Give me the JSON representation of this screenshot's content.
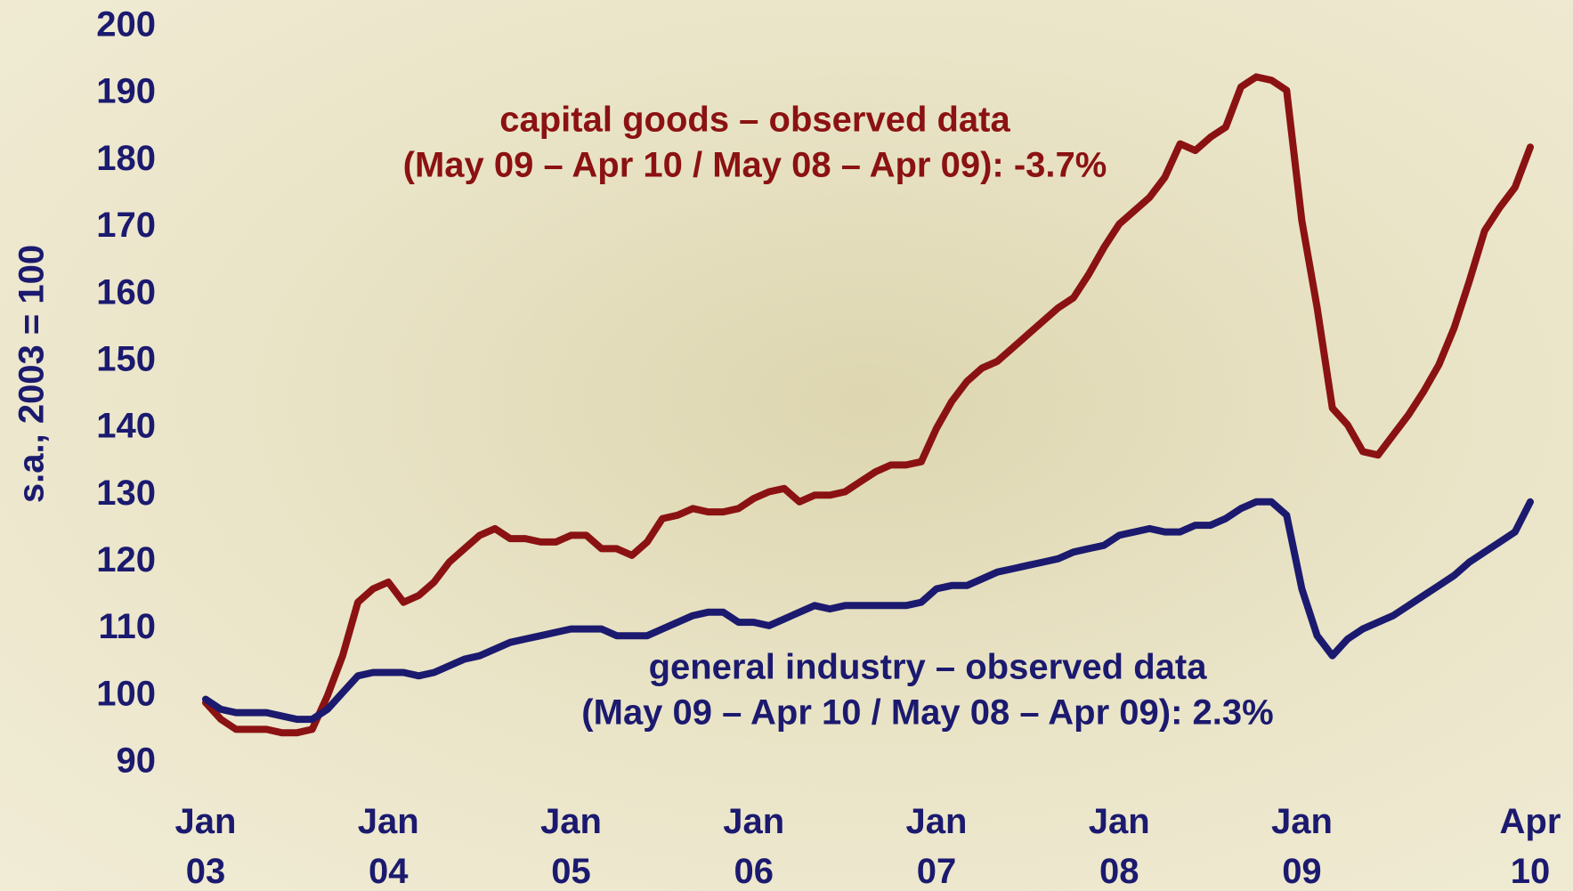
{
  "chart_data": {
    "type": "line",
    "ylabel": "s.a., 2003 = 100",
    "categories": [
      "Jan 03",
      null,
      null,
      null,
      null,
      null,
      null,
      null,
      null,
      null,
      null,
      null,
      "Jan 04",
      null,
      null,
      null,
      null,
      null,
      null,
      null,
      null,
      null,
      null,
      null,
      "Jan 05",
      null,
      null,
      null,
      null,
      null,
      null,
      null,
      null,
      null,
      null,
      null,
      "Jan 06",
      null,
      null,
      null,
      null,
      null,
      null,
      null,
      null,
      null,
      null,
      null,
      "Jan 07",
      null,
      null,
      null,
      null,
      null,
      null,
      null,
      null,
      null,
      null,
      null,
      "Jan 08",
      null,
      null,
      null,
      null,
      null,
      null,
      null,
      null,
      null,
      null,
      null,
      "Jan 09",
      null,
      null,
      null,
      null,
      null,
      null,
      null,
      null,
      null,
      null,
      null,
      null,
      null,
      null,
      "Apr 10"
    ],
    "series": [
      {
        "name": "capital goods",
        "color": "#8b1212",
        "values": [
          99,
          96.5,
          95,
          95,
          95,
          94.5,
          94.5,
          95,
          100,
          106,
          114,
          116,
          117,
          114,
          115,
          117,
          120,
          122,
          124,
          125,
          123.5,
          123.5,
          123,
          123,
          124,
          124,
          122,
          122,
          121,
          123,
          126.5,
          127,
          128,
          127.5,
          127.5,
          128,
          129.5,
          130.5,
          131,
          129,
          130,
          130,
          130.5,
          132,
          133.5,
          134.5,
          134.5,
          135,
          140,
          144,
          147,
          149,
          150,
          152,
          154,
          156,
          158,
          159.5,
          163,
          167,
          170.5,
          172.5,
          174.5,
          177.5,
          182.5,
          181.5,
          183.5,
          185,
          191,
          192.5,
          192,
          190.5,
          171,
          158,
          143,
          140.5,
          136.5,
          136,
          139,
          142,
          145.5,
          149.5,
          155,
          162,
          169.5,
          173,
          176,
          182
        ]
      },
      {
        "name": "general industry",
        "color": "#1b1a6f",
        "values": [
          99.5,
          98,
          97.5,
          97.5,
          97.5,
          97,
          96.5,
          96.5,
          98,
          100.5,
          103,
          103.5,
          103.5,
          103.5,
          103,
          103.5,
          104.5,
          105.5,
          106,
          107,
          108,
          108.5,
          109,
          109.5,
          110,
          110,
          110,
          109,
          109,
          109,
          110,
          111,
          112,
          112.5,
          112.5,
          111,
          111,
          110.5,
          111.5,
          112.5,
          113.5,
          113,
          113.5,
          113.5,
          113.5,
          113.5,
          113.5,
          114,
          116,
          116.5,
          116.5,
          117.5,
          118.5,
          119,
          119.5,
          120,
          120.5,
          121.5,
          122,
          122.5,
          124,
          124.5,
          125,
          124.5,
          124.5,
          125.5,
          125.5,
          126.5,
          128,
          129,
          129,
          127,
          116,
          109,
          106,
          108.5,
          110,
          111,
          112,
          113.5,
          115,
          116.5,
          118,
          120,
          121.5,
          123,
          124.5,
          129
        ]
      }
    ],
    "annotations": [
      {
        "lines": [
          "capital goods – observed data",
          "(May 09 – Apr 10 / May 08 – Apr 09): -3.7%"
        ],
        "color": "#8b1212"
      },
      {
        "lines": [
          "general industry – observed data",
          "(May 09 – Apr 10 / May 08 – Apr 09): 2.3%"
        ],
        "color": "#1b1a6f"
      }
    ],
    "ylim": [
      90,
      200
    ],
    "yticks": [
      90,
      100,
      110,
      120,
      130,
      140,
      150,
      160,
      170,
      180,
      190,
      200
    ],
    "grid": false
  }
}
